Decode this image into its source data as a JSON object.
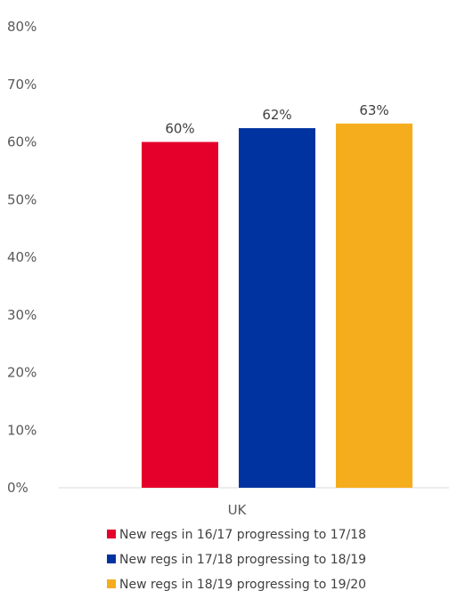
{
  "chart_data": {
    "type": "bar",
    "categories": [
      "UK"
    ],
    "series": [
      {
        "name": "New regs in 16/17 progressing to 17/18",
        "values": [
          60
        ],
        "label": "60%",
        "color": "#e4002b"
      },
      {
        "name": "New regs in 17/18 progressing to 18/19",
        "values": [
          62.4
        ],
        "label": "62%",
        "color": "#0033a0"
      },
      {
        "name": "New regs in 18/19 progressing to 19/20",
        "values": [
          63.2
        ],
        "label": "63%",
        "color": "#f6ad1d"
      }
    ],
    "yticks": [
      "0%",
      "10%",
      "20%",
      "30%",
      "40%",
      "50%",
      "60%",
      "70%",
      "80%"
    ],
    "ylim": [
      0,
      80
    ],
    "grid": false,
    "legend_position": "bottom",
    "axis_color": "#d9d9d9"
  }
}
